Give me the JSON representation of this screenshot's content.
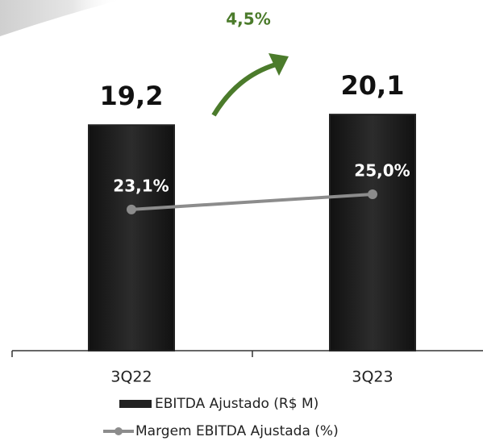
{
  "chart_data": {
    "type": "bar_line",
    "annotation": "4,5%",
    "categories": [
      "3Q22",
      "3Q23"
    ],
    "series": [
      {
        "name": "EBITDA Ajustado (R$ M)",
        "type": "bar",
        "color": "#222222",
        "values": [
          19.2,
          20.1
        ],
        "value_labels": [
          "19,2",
          "20,1"
        ]
      },
      {
        "name": "Margem EBITDA Ajustada (%)",
        "type": "line",
        "axis": "y2",
        "color": "#8c8c8c",
        "values": [
          23.1,
          25.0
        ],
        "value_labels": [
          "23,1%",
          "25,0%"
        ]
      }
    ],
    "ylim": [
      0,
      28
    ],
    "y2lim": [
      5.5,
      46.5
    ],
    "annotation_color": "#4b7b2b"
  }
}
